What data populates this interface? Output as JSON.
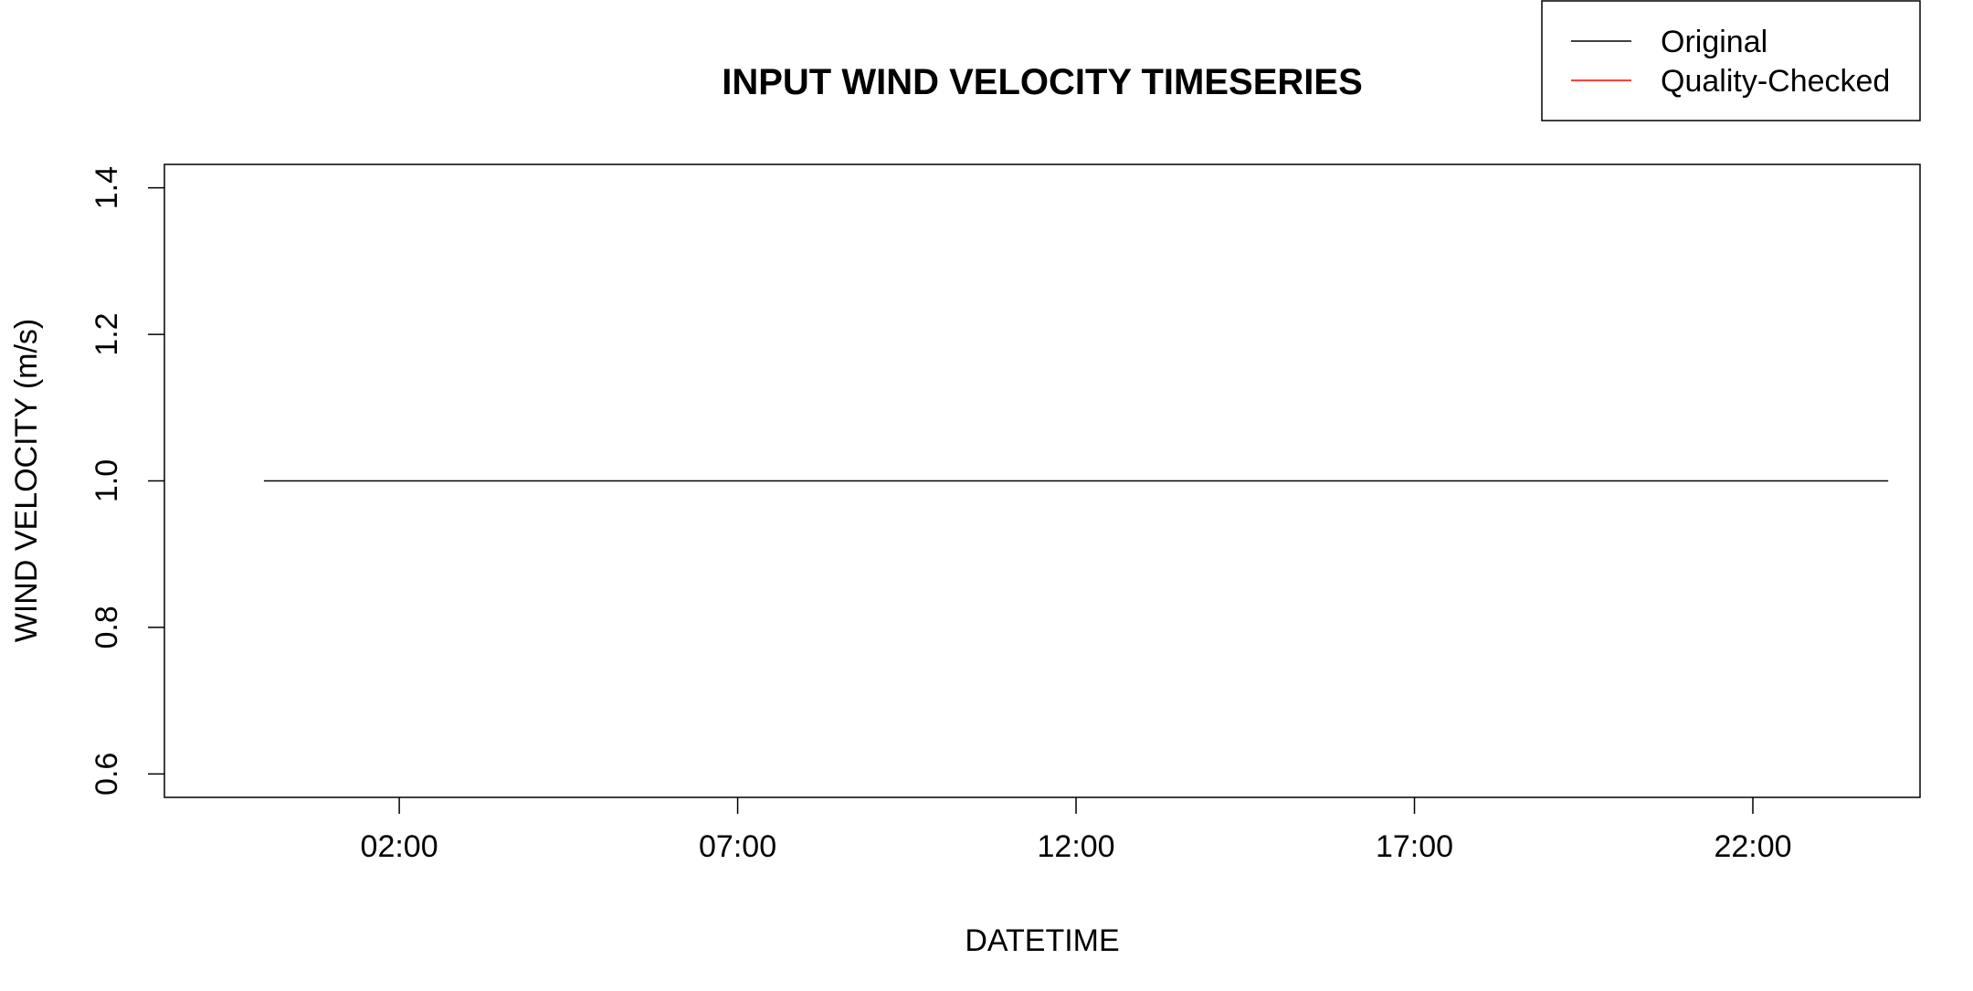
{
  "chart_data": {
    "type": "line",
    "title": "INPUT WIND VELOCITY TIMESERIES",
    "xlabel": "DATETIME",
    "ylabel": "WIND VELOCITY (m/s)",
    "x_tick_labels": [
      "02:00",
      "07:00",
      "12:00",
      "17:00",
      "22:00"
    ],
    "x_tick_hours": [
      2,
      7,
      12,
      17,
      22
    ],
    "y_ticks": [
      0.6,
      0.8,
      1.0,
      1.2,
      1.4
    ],
    "y_tick_labels": [
      "0.6",
      "0.8",
      "1.0",
      "1.2",
      "1.4"
    ],
    "xlim_hours": [
      -1.47,
      24.47
    ],
    "ylim": [
      0.568,
      1.432
    ],
    "grid": false,
    "legend": {
      "position": "top-right",
      "entries": [
        {
          "label": "Original",
          "color": "#000000"
        },
        {
          "label": "Quality-Checked",
          "color": "#ff0000"
        }
      ]
    },
    "series": [
      {
        "name": "Original",
        "color": "#000000",
        "x_hours": [
          0,
          24
        ],
        "values": [
          1.0,
          1.0
        ]
      }
    ]
  }
}
